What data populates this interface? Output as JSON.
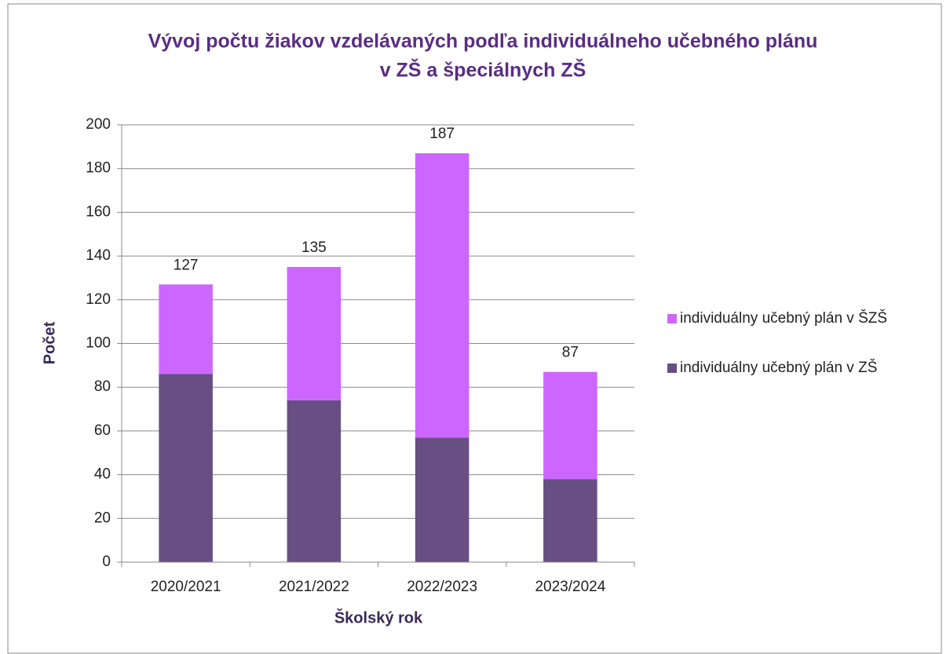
{
  "chart_data": {
    "type": "stacked_bar",
    "title": [
      "Vývoj počtu žiakov vzdelávaných podľa individuálneho učebného plánu",
      "v ZŠ a špeciálnych ZŠ"
    ],
    "x_label": "Školský rok",
    "y_label": "Počet",
    "categories": [
      "2020/2021",
      "2021/2022",
      "2022/2023",
      "2023/2024"
    ],
    "series": [
      {
        "name": "individuálny učebný plán v ZŠ",
        "color": "#674f84",
        "values": [
          86,
          74,
          57,
          38
        ]
      },
      {
        "name": "individuálny učebný plán v ŠZŠ",
        "color": "#cc66ff",
        "values": [
          41,
          61,
          130,
          49
        ]
      }
    ],
    "total_labels": [
      127,
      135,
      187,
      87
    ],
    "ylim": [
      0,
      200
    ],
    "yticks": [
      0,
      20,
      40,
      60,
      80,
      100,
      120,
      140,
      160,
      180,
      200
    ],
    "grid": true,
    "legend": "right"
  }
}
